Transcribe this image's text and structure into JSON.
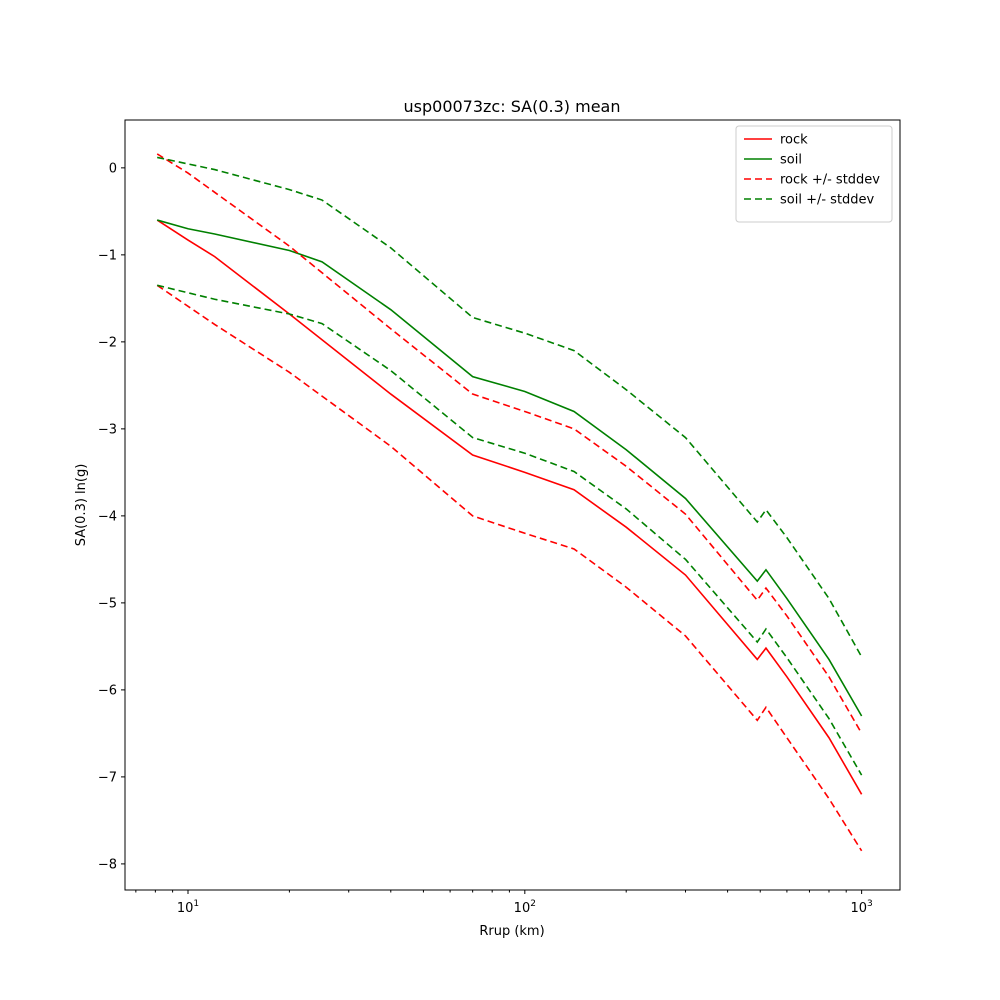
{
  "chart_data": {
    "type": "line",
    "title": "usp00073zc: SA(0.3) mean",
    "xlabel": "Rrup (km)",
    "ylabel": "SA(0.3) ln(g)",
    "xscale": "log",
    "xlim": [
      6.5,
      1300
    ],
    "ylim": [
      -8.3,
      0.55
    ],
    "xticks": [
      {
        "value": 10,
        "base": "10",
        "exp": "1"
      },
      {
        "value": 100,
        "base": "10",
        "exp": "2"
      },
      {
        "value": 1000,
        "base": "10",
        "exp": "3"
      }
    ],
    "yticks": [
      {
        "value": 0,
        "label": "0"
      },
      {
        "value": -1,
        "label": "−1"
      },
      {
        "value": -2,
        "label": "−2"
      },
      {
        "value": -3,
        "label": "−3"
      },
      {
        "value": -4,
        "label": "−4"
      },
      {
        "value": -5,
        "label": "−5"
      },
      {
        "value": -6,
        "label": "−6"
      },
      {
        "value": -7,
        "label": "−7"
      },
      {
        "value": -8,
        "label": "−8"
      }
    ],
    "grid": false,
    "legend": {
      "position": "top-right",
      "entries": [
        {
          "name": "rock",
          "color": "#ff0000",
          "dash": "solid"
        },
        {
          "name": "soil",
          "color": "#008000",
          "dash": "solid"
        },
        {
          "name": "rock +/- stddev",
          "color": "#ff0000",
          "dash": "dashed"
        },
        {
          "name": "soil +/- stddev",
          "color": "#008000",
          "dash": "dashed"
        }
      ]
    },
    "series": [
      {
        "name": "rock",
        "color": "#ff0000",
        "dash": "solid",
        "x": [
          8.1,
          10,
          12,
          20,
          40,
          70,
          100,
          140,
          200,
          300,
          490,
          520,
          600,
          800,
          1000
        ],
        "y": [
          -0.6,
          -0.83,
          -1.02,
          -1.68,
          -2.6,
          -3.3,
          -3.5,
          -3.7,
          -4.13,
          -4.68,
          -5.65,
          -5.52,
          -5.85,
          -6.55,
          -7.2
        ]
      },
      {
        "name": "soil",
        "color": "#008000",
        "dash": "solid",
        "x": [
          8.1,
          10,
          12,
          20,
          25,
          40,
          70,
          100,
          140,
          200,
          300,
          490,
          520,
          600,
          800,
          1000
        ],
        "y": [
          -0.6,
          -0.7,
          -0.76,
          -0.95,
          -1.08,
          -1.63,
          -2.4,
          -2.57,
          -2.8,
          -3.24,
          -3.8,
          -4.75,
          -4.62,
          -4.95,
          -5.65,
          -6.3
        ]
      },
      {
        "name": "rock + stddev",
        "color": "#ff0000",
        "dash": "dashed",
        "x": [
          8.1,
          10,
          20,
          40,
          70,
          100,
          140,
          200,
          300,
          490,
          520,
          600,
          800,
          1000
        ],
        "y": [
          0.16,
          -0.06,
          -0.9,
          -1.85,
          -2.6,
          -2.8,
          -3.0,
          -3.43,
          -3.98,
          -4.97,
          -4.83,
          -5.15,
          -5.85,
          -6.5
        ]
      },
      {
        "name": "rock - stddev",
        "color": "#ff0000",
        "dash": "dashed",
        "x": [
          8.1,
          12,
          20,
          40,
          70,
          100,
          140,
          200,
          300,
          490,
          520,
          600,
          800,
          1000
        ],
        "y": [
          -1.35,
          -1.8,
          -2.35,
          -3.2,
          -4.0,
          -4.2,
          -4.38,
          -4.82,
          -5.38,
          -6.35,
          -6.2,
          -6.55,
          -7.25,
          -7.85
        ]
      },
      {
        "name": "soil + stddev",
        "color": "#008000",
        "dash": "dashed",
        "x": [
          8.1,
          12,
          20,
          25,
          40,
          70,
          100,
          140,
          200,
          300,
          490,
          520,
          600,
          800,
          1000
        ],
        "y": [
          0.12,
          -0.02,
          -0.25,
          -0.37,
          -0.92,
          -1.72,
          -1.9,
          -2.1,
          -2.55,
          -3.1,
          -4.07,
          -3.93,
          -4.25,
          -4.95,
          -5.62
        ]
      },
      {
        "name": "soil - stddev",
        "color": "#008000",
        "dash": "dashed",
        "x": [
          8.1,
          12,
          20,
          25,
          40,
          70,
          100,
          140,
          200,
          300,
          490,
          520,
          600,
          800,
          1000
        ],
        "y": [
          -1.35,
          -1.51,
          -1.68,
          -1.79,
          -2.33,
          -3.1,
          -3.28,
          -3.49,
          -3.92,
          -4.5,
          -5.45,
          -5.3,
          -5.63,
          -6.33,
          -6.98
        ]
      }
    ]
  }
}
